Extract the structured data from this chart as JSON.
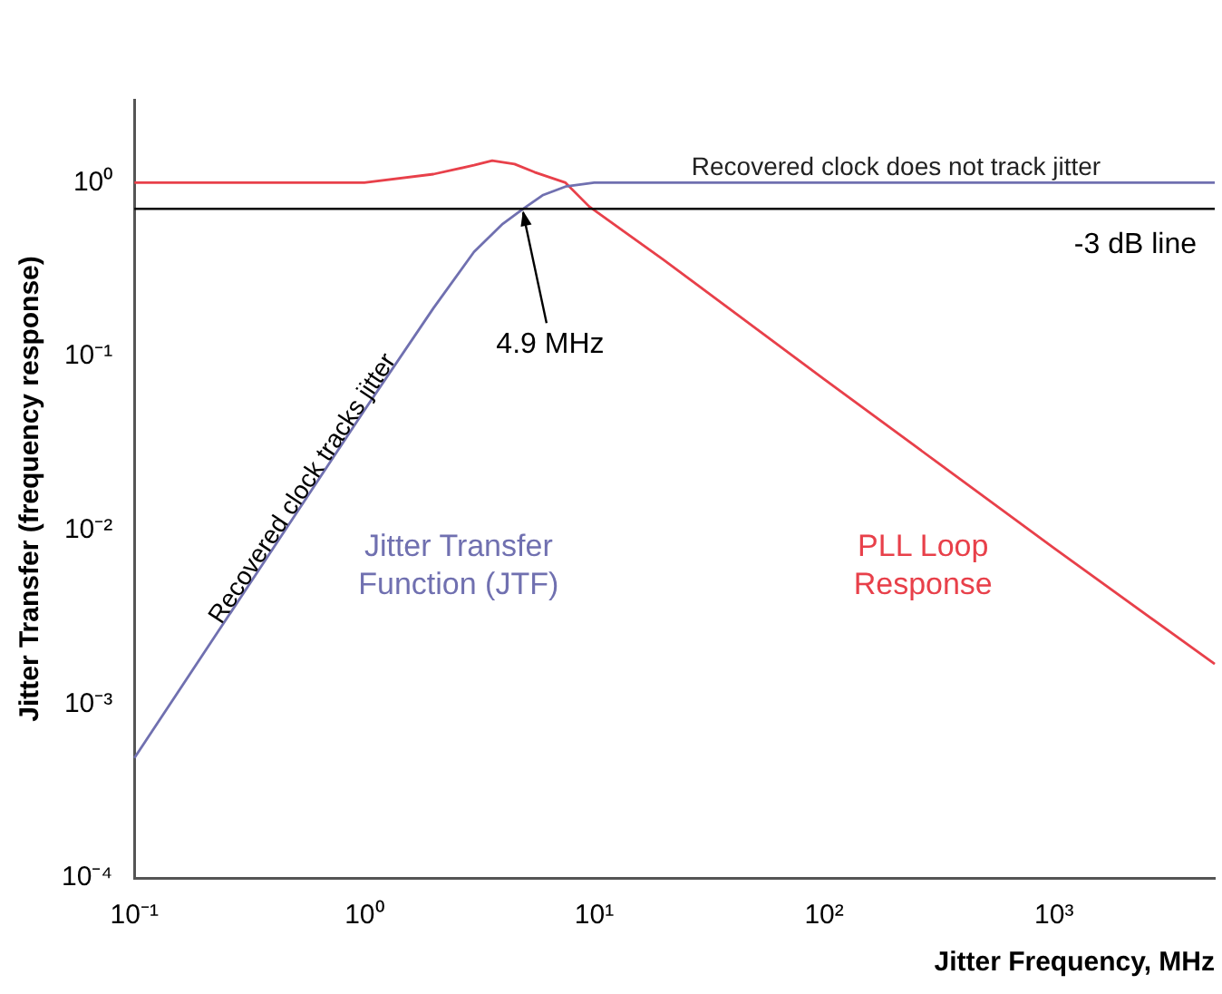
{
  "chart_data": {
    "type": "line",
    "xlabel": "Jitter Frequency, MHz",
    "ylabel": "Jitter Transfer (frequency response)",
    "log": "xy",
    "grid": false,
    "legend": false,
    "marker": "none",
    "line_style": "solid",
    "xlim": [
      0.1,
      5000
    ],
    "ylim": [
      0.0001,
      3
    ],
    "xticks": [
      {
        "value": 0.1,
        "label": "10⁻¹"
      },
      {
        "value": 1,
        "label": "10⁰"
      },
      {
        "value": 10,
        "label": "10¹"
      },
      {
        "value": 100,
        "label": "10²"
      },
      {
        "value": 1000,
        "label": "10³"
      }
    ],
    "yticks": [
      {
        "value": 0.0001,
        "label": "10⁻⁴"
      },
      {
        "value": 0.001,
        "label": "10⁻³"
      },
      {
        "value": 0.01,
        "label": "10⁻²"
      },
      {
        "value": 0.1,
        "label": "10⁻¹"
      },
      {
        "value": 1,
        "label": "10⁰"
      }
    ],
    "series": [
      {
        "name": "Jitter Transfer Function (JTF)",
        "color": "#7070b0",
        "x": [
          0.1,
          0.3,
          1,
          2,
          3,
          4,
          4.9,
          6,
          7.5,
          10,
          100,
          1000,
          5000
        ],
        "values": [
          0.00049,
          0.0044,
          0.049,
          0.19,
          0.4,
          0.58,
          0.707,
          0.85,
          0.95,
          1,
          1,
          1,
          1
        ]
      },
      {
        "name": "PLL Loop Response",
        "color": "#e8404a",
        "x": [
          0.1,
          1,
          2,
          3,
          3.6,
          4.5,
          5.5,
          7.5,
          9.5,
          20,
          100,
          1000,
          5000
        ],
        "values": [
          1,
          1,
          1.12,
          1.26,
          1.34,
          1.28,
          1.15,
          1,
          0.73,
          0.36,
          0.074,
          0.0079,
          0.0017
        ]
      }
    ],
    "ref_lines": [
      {
        "axis": "y",
        "value": 0.707,
        "label": "-3 dB line",
        "color": "#000000"
      }
    ],
    "annotations": [
      {
        "text": "4.9 MHz",
        "x": 4.9,
        "y": 0.707
      },
      "Recovered clock tracks jitter",
      "Recovered clock does not track jitter"
    ]
  }
}
